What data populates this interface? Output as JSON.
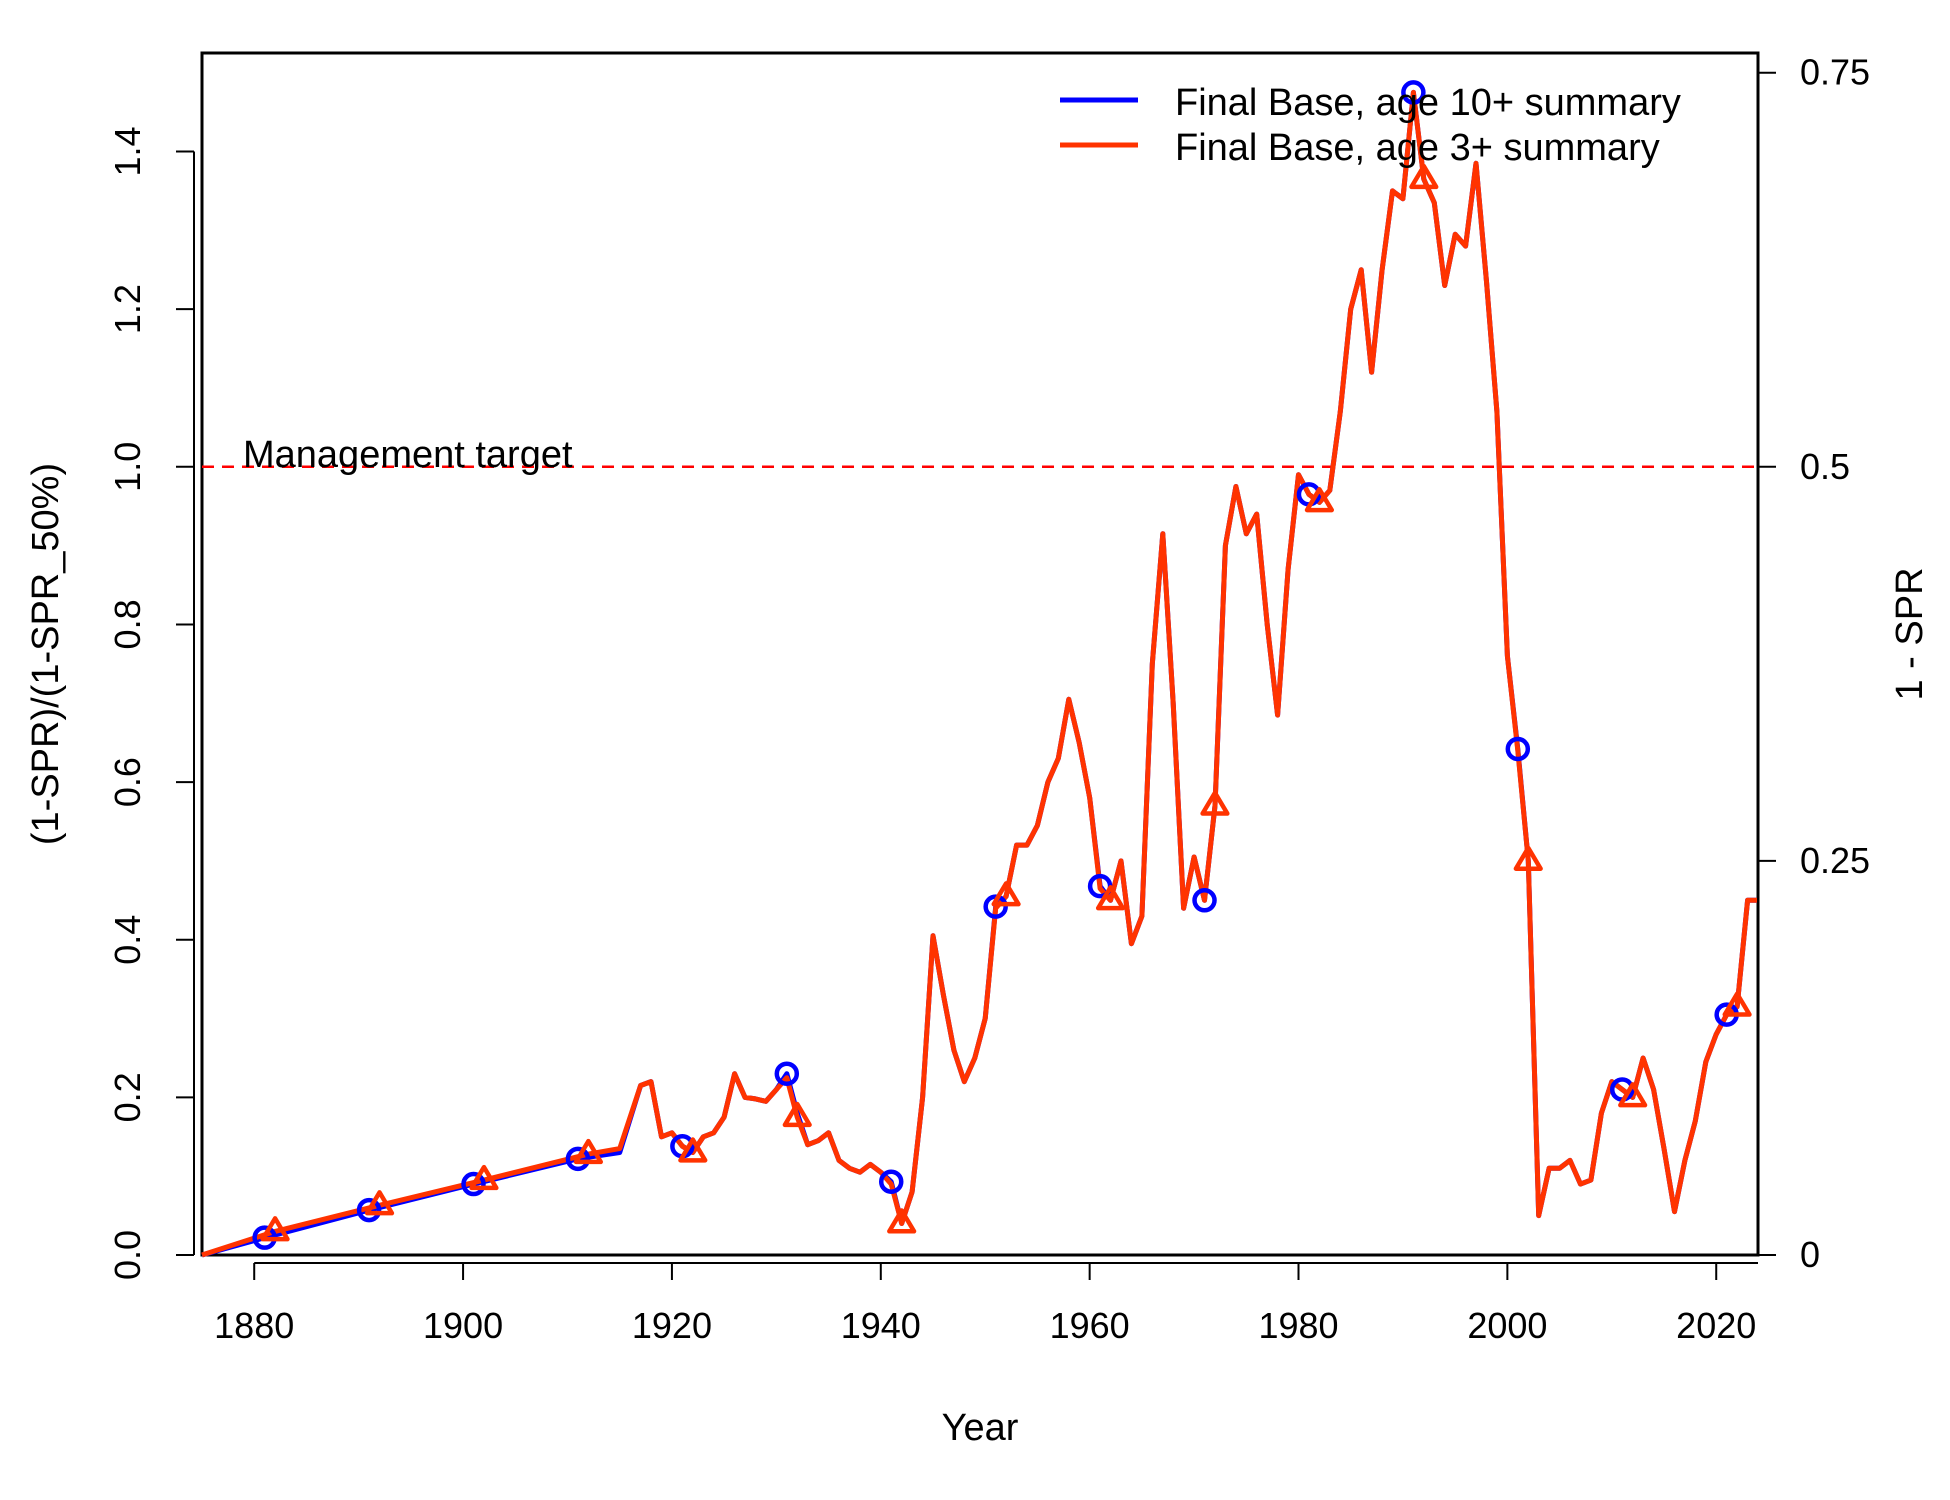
{
  "chart_data": {
    "type": "line",
    "xlabel": "Year",
    "ylabel": "(1-SPR)/(1-SPR_50%)",
    "y2label": "1 - SPR",
    "xlim": [
      1875,
      2024
    ],
    "ylim": [
      0,
      1.5
    ],
    "y2lim": [
      0,
      0.75
    ],
    "x_ticks": [
      1880,
      1900,
      1920,
      1940,
      1960,
      1980,
      2000,
      2020
    ],
    "y_ticks": [
      0.0,
      0.2,
      0.4,
      0.6,
      0.8,
      1.0,
      1.2,
      1.4
    ],
    "y_tick_labels": [
      "0.0",
      "0.2",
      "0.4",
      "0.6",
      "0.8",
      "1.0",
      "1.2",
      "1.4"
    ],
    "y2_ticks": [
      0,
      0.25,
      0.5,
      0.75
    ],
    "y2_tick_labels": [
      "0",
      "0.25",
      "0.5",
      "0.75"
    ],
    "grid": false,
    "legend_position": "top-right",
    "reference_line": {
      "y": 1.0,
      "label": "Management target",
      "color": "#ff0000",
      "style": "dashed"
    },
    "series": [
      {
        "name": "Final Base, age 10+ summary",
        "color": "#0000ff",
        "marker": "circle",
        "x": [
          1875,
          1881,
          1891,
          1901,
          1911,
          1915,
          1917,
          1918,
          1919,
          1920,
          1921,
          1922,
          1923,
          1924,
          1925,
          1926,
          1927,
          1928,
          1929,
          1930,
          1931,
          1932,
          1933,
          1934,
          1935,
          1936,
          1937,
          1938,
          1939,
          1940,
          1941,
          1942,
          1943,
          1944,
          1945,
          1946,
          1947,
          1948,
          1949,
          1950,
          1951,
          1952,
          1953,
          1954,
          1955,
          1956,
          1957,
          1958,
          1959,
          1960,
          1961,
          1962,
          1963,
          1964,
          1965,
          1966,
          1967,
          1968,
          1969,
          1970,
          1971,
          1972,
          1973,
          1974,
          1975,
          1976,
          1977,
          1978,
          1979,
          1980,
          1981,
          1982,
          1983,
          1984,
          1985,
          1986,
          1987,
          1988,
          1989,
          1990,
          1991,
          1992,
          1993,
          1994,
          1995,
          1996,
          1997,
          1998,
          1999,
          2000,
          2001,
          2002,
          2003,
          2004,
          2005,
          2006,
          2007,
          2008,
          2009,
          2010,
          2011,
          2012,
          2013,
          2014,
          2015,
          2016,
          2017,
          2018,
          2019,
          2020,
          2021,
          2022,
          2023,
          2024
        ],
        "y": [
          0.0,
          0.022,
          0.057,
          0.09,
          0.122,
          0.13,
          0.215,
          0.22,
          0.15,
          0.155,
          0.138,
          0.13,
          0.15,
          0.155,
          0.175,
          0.23,
          0.2,
          0.198,
          0.195,
          0.21,
          0.23,
          0.18,
          0.14,
          0.145,
          0.155,
          0.12,
          0.11,
          0.105,
          0.115,
          0.105,
          0.093,
          0.04,
          0.08,
          0.2,
          0.405,
          0.33,
          0.26,
          0.22,
          0.25,
          0.3,
          0.442,
          0.455,
          0.52,
          0.52,
          0.545,
          0.6,
          0.63,
          0.705,
          0.65,
          0.58,
          0.468,
          0.45,
          0.5,
          0.395,
          0.43,
          0.75,
          0.915,
          0.7,
          0.44,
          0.505,
          0.45,
          0.57,
          0.9,
          0.975,
          0.915,
          0.94,
          0.8,
          0.685,
          0.87,
          0.99,
          0.965,
          0.955,
          0.97,
          1.07,
          1.2,
          1.25,
          1.12,
          1.25,
          1.35,
          1.34,
          1.475,
          1.365,
          1.335,
          1.23,
          1.295,
          1.28,
          1.385,
          1.235,
          1.07,
          0.76,
          0.642,
          0.5,
          0.05,
          0.11,
          0.11,
          0.12,
          0.09,
          0.095,
          0.18,
          0.22,
          0.21,
          0.2,
          0.25,
          0.21,
          0.135,
          0.055,
          0.12,
          0.17,
          0.245,
          0.28,
          0.305,
          0.315,
          0.45,
          0.45
        ],
        "marker_x": [
          1881,
          1891,
          1901,
          1911,
          1921,
          1931,
          1941,
          1951,
          1961,
          1971,
          1981,
          1991,
          2001,
          2011,
          2021
        ]
      },
      {
        "name": "Final Base, age 3+ summary",
        "color": "#ff3300",
        "marker": "triangle",
        "x": [
          1875,
          1882,
          1892,
          1902,
          1912,
          1915,
          1917,
          1918,
          1919,
          1920,
          1921,
          1922,
          1923,
          1924,
          1925,
          1926,
          1927,
          1928,
          1929,
          1930,
          1931,
          1932,
          1933,
          1934,
          1935,
          1936,
          1937,
          1938,
          1939,
          1940,
          1941,
          1942,
          1943,
          1944,
          1945,
          1946,
          1947,
          1948,
          1949,
          1950,
          1951,
          1952,
          1953,
          1954,
          1955,
          1956,
          1957,
          1958,
          1959,
          1960,
          1961,
          1962,
          1963,
          1964,
          1965,
          1966,
          1967,
          1968,
          1969,
          1970,
          1971,
          1972,
          1973,
          1974,
          1975,
          1976,
          1977,
          1978,
          1979,
          1980,
          1981,
          1982,
          1983,
          1984,
          1985,
          1986,
          1987,
          1988,
          1989,
          1990,
          1991,
          1992,
          1993,
          1994,
          1995,
          1996,
          1997,
          1998,
          1999,
          2000,
          2001,
          2002,
          2003,
          2004,
          2005,
          2006,
          2007,
          2008,
          2009,
          2010,
          2011,
          2012,
          2013,
          2014,
          2015,
          2016,
          2017,
          2018,
          2019,
          2020,
          2021,
          2022,
          2023,
          2024
        ],
        "y": [
          0.0,
          0.03,
          0.063,
          0.095,
          0.128,
          0.135,
          0.215,
          0.22,
          0.15,
          0.155,
          0.138,
          0.13,
          0.15,
          0.155,
          0.175,
          0.23,
          0.2,
          0.198,
          0.195,
          0.21,
          0.225,
          0.175,
          0.14,
          0.145,
          0.155,
          0.12,
          0.11,
          0.105,
          0.115,
          0.105,
          0.09,
          0.04,
          0.08,
          0.2,
          0.405,
          0.33,
          0.26,
          0.22,
          0.25,
          0.3,
          0.44,
          0.455,
          0.52,
          0.52,
          0.545,
          0.6,
          0.63,
          0.705,
          0.65,
          0.58,
          0.465,
          0.45,
          0.5,
          0.395,
          0.43,
          0.75,
          0.915,
          0.7,
          0.44,
          0.505,
          0.45,
          0.57,
          0.9,
          0.975,
          0.915,
          0.94,
          0.8,
          0.685,
          0.87,
          0.99,
          0.965,
          0.955,
          0.97,
          1.07,
          1.2,
          1.25,
          1.12,
          1.25,
          1.35,
          1.34,
          1.475,
          1.365,
          1.335,
          1.23,
          1.295,
          1.28,
          1.385,
          1.235,
          1.07,
          0.76,
          0.64,
          0.5,
          0.05,
          0.11,
          0.11,
          0.12,
          0.09,
          0.095,
          0.18,
          0.22,
          0.21,
          0.2,
          0.25,
          0.21,
          0.135,
          0.055,
          0.12,
          0.17,
          0.245,
          0.28,
          0.305,
          0.315,
          0.45,
          0.45
        ],
        "marker_x": [
          1882,
          1892,
          1902,
          1912,
          1922,
          1932,
          1942,
          1952,
          1962,
          1972,
          1982,
          1992,
          2002,
          2012,
          2022
        ]
      }
    ]
  }
}
